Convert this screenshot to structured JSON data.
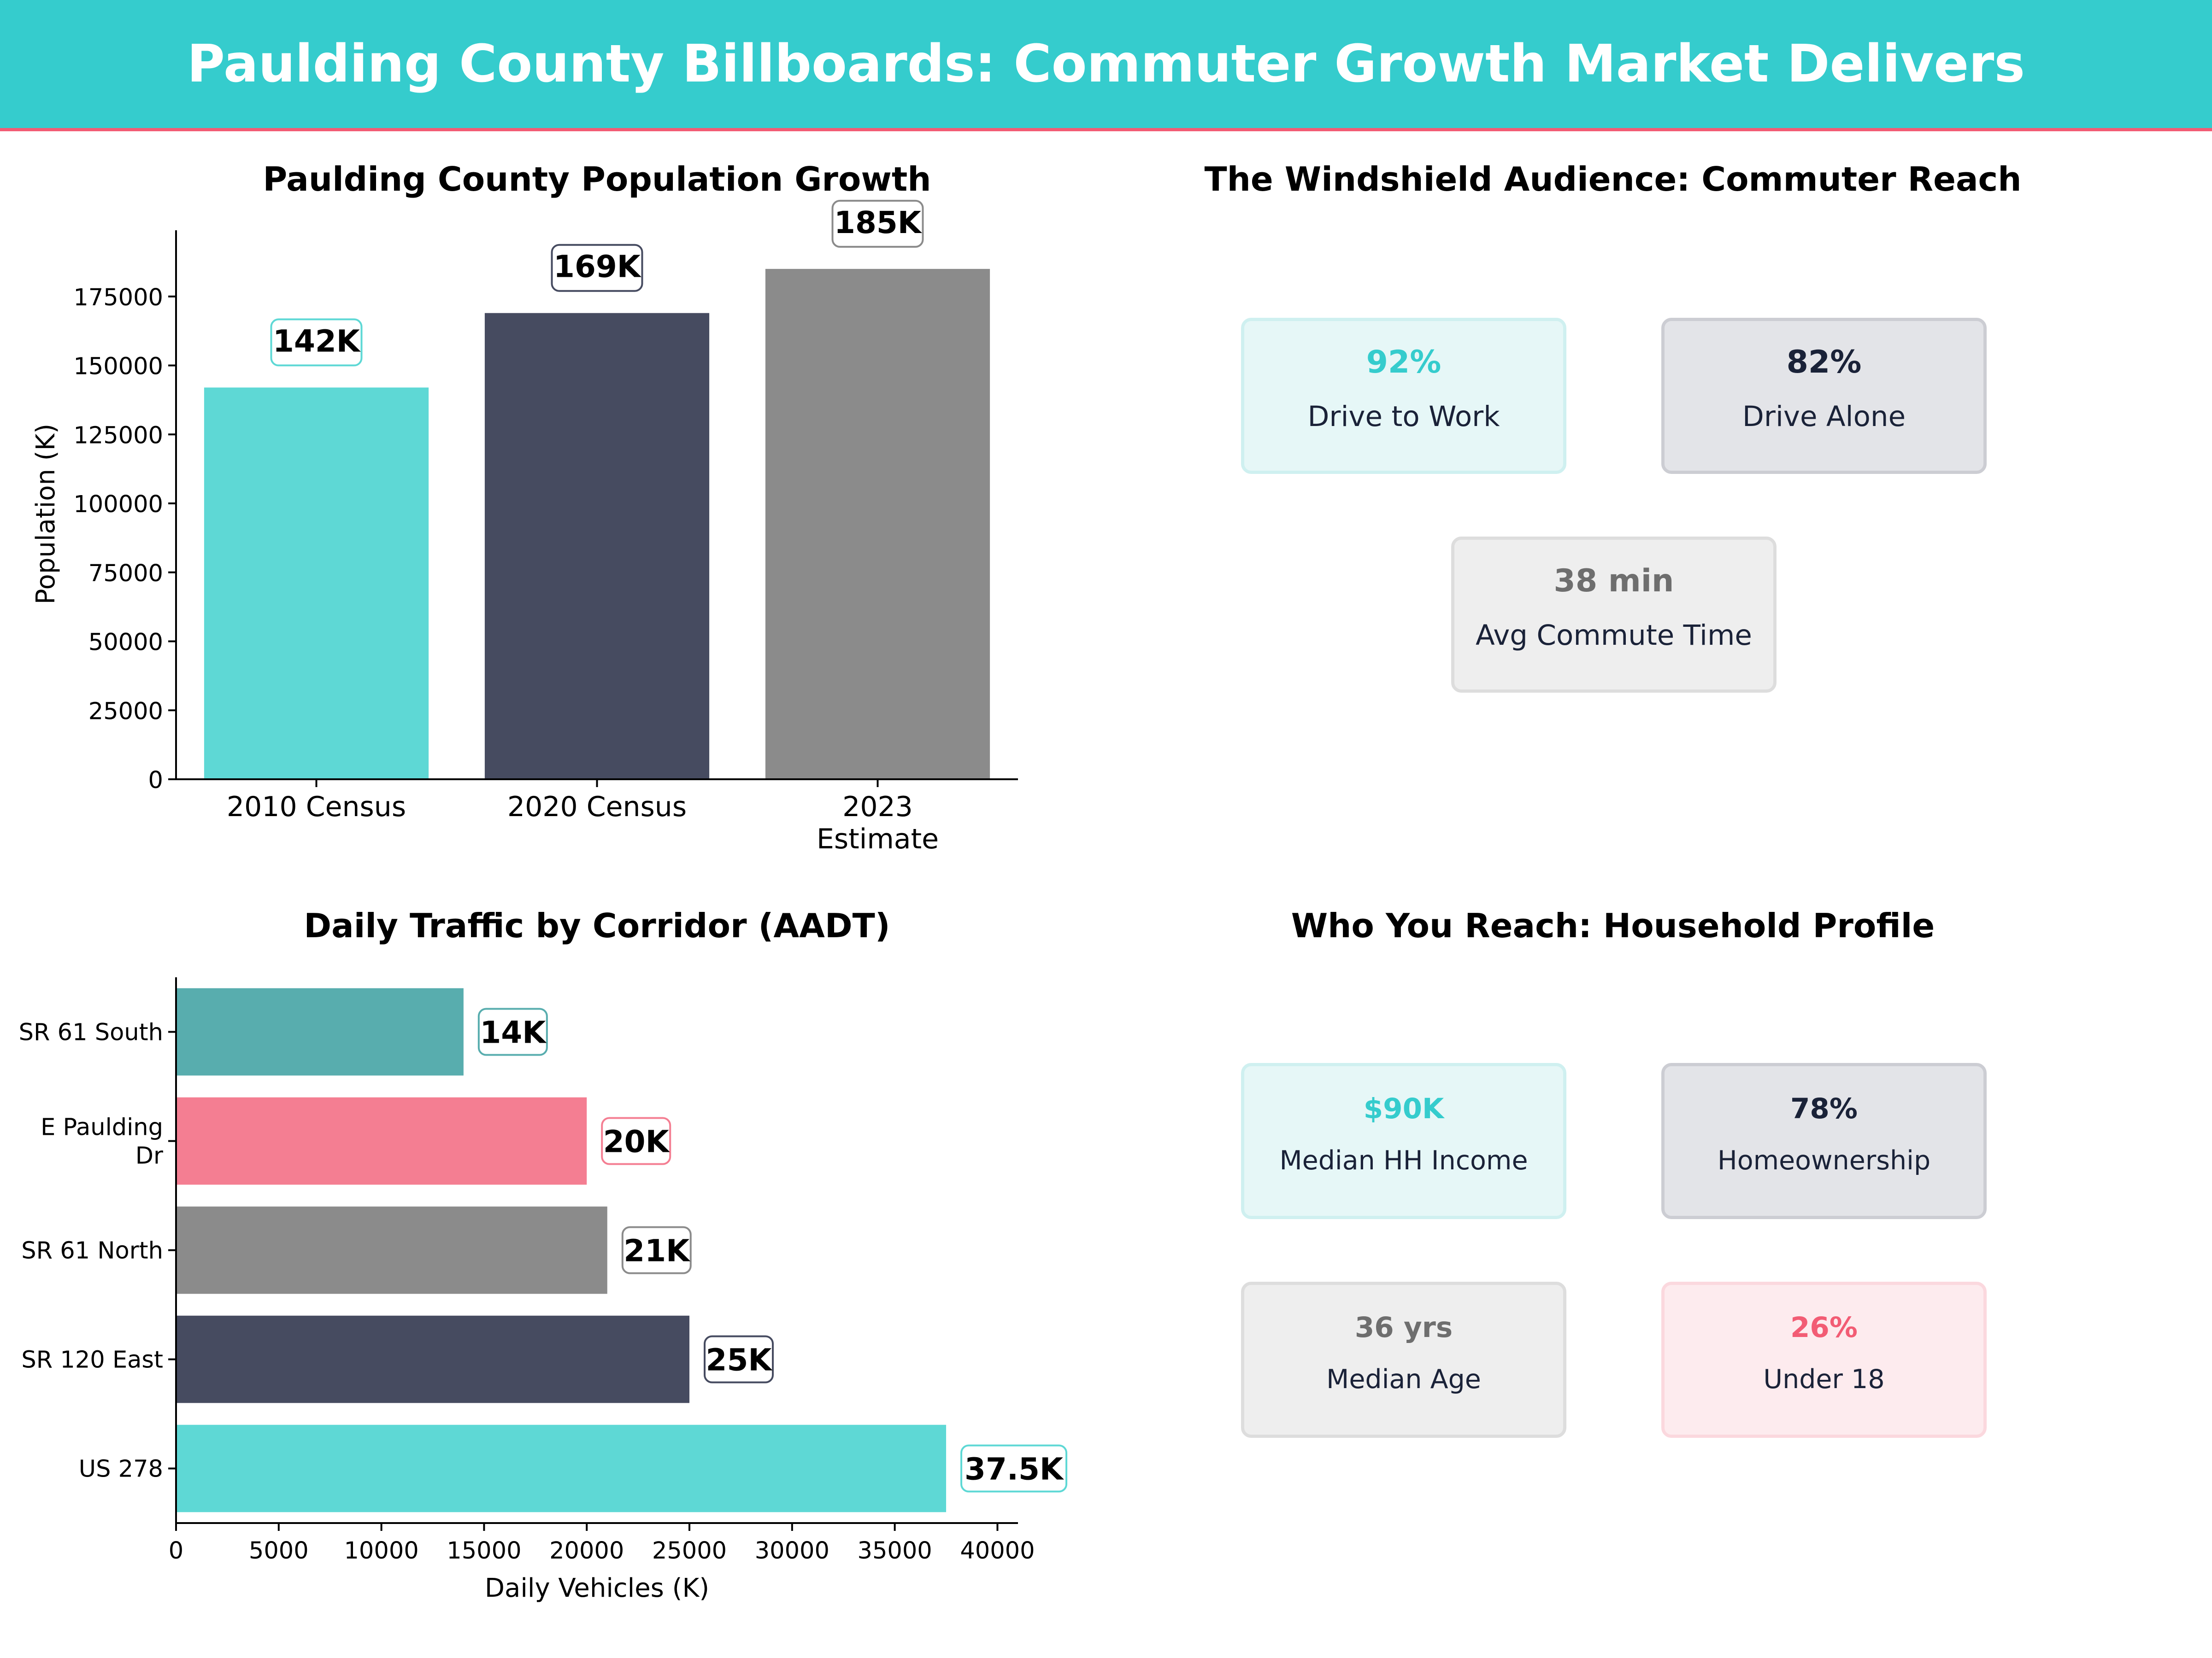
{
  "page": {
    "title": "Paulding County Billboards: Commuter Growth Market Delivers"
  },
  "colors": {
    "teal": "#5ED8D5",
    "navy": "#464B60",
    "gray": "#8B8B8B",
    "pink": "#F47E92",
    "dark_teal": "#58ADAE",
    "banner": "#35CCCD",
    "accent": "#F25C74"
  },
  "chart_data": [
    {
      "type": "bar",
      "title": "Paulding County Population Growth",
      "ylabel": "Population (K)",
      "ylim": [
        0,
        199000
      ],
      "yticks": [
        0,
        25000,
        50000,
        75000,
        100000,
        125000,
        150000,
        175000
      ],
      "ytick_labels": [
        "0",
        "25000",
        "50000",
        "75000",
        "100000",
        "125000",
        "150000",
        "175000"
      ],
      "categories": [
        "2010 Census",
        "2020 Census",
        "2023\nEstimate"
      ],
      "category_lines": [
        [
          "2010 Census"
        ],
        [
          "2020 Census"
        ],
        [
          "2023",
          "Estimate"
        ]
      ],
      "values": [
        142000,
        169000,
        185000
      ],
      "data_labels": [
        "142K",
        "169K",
        "185K"
      ],
      "bar_colors": [
        "#5ED8D5",
        "#464B60",
        "#8B8B8B"
      ],
      "grid": false
    },
    {
      "type": "bar",
      "orientation": "horizontal",
      "title": "Daily Traffic by Corridor (AADT)",
      "xlabel": "Daily Vehicles (K)",
      "xlim": [
        0,
        41000
      ],
      "xticks": [
        0,
        5000,
        10000,
        15000,
        20000,
        25000,
        30000,
        35000,
        40000
      ],
      "xtick_labels": [
        "0",
        "5000",
        "10000",
        "15000",
        "20000",
        "25000",
        "30000",
        "35000",
        "40000"
      ],
      "categories": [
        "SR 61 South",
        "E Paulding Dr",
        "SR 61 North",
        "SR 120 East",
        "US 278"
      ],
      "category_lines": [
        [
          "SR 61 South"
        ],
        [
          "E Paulding",
          "Dr"
        ],
        [
          "SR 61 North"
        ],
        [
          "SR 120 East"
        ],
        [
          "US 278"
        ]
      ],
      "values": [
        14000,
        20000,
        21000,
        25000,
        37500
      ],
      "data_labels": [
        "14K",
        "20K",
        "21K",
        "25K",
        "37.5K"
      ],
      "bar_colors": [
        "#58ADAE",
        "#F47E92",
        "#8B8B8B",
        "#464B60",
        "#5ED8D5"
      ],
      "grid": false
    }
  ],
  "commuter": {
    "title": "The Windshield Audience: Commuter Reach",
    "cards": [
      {
        "value": "92%",
        "label": "Drive to Work",
        "value_color": "#35CCCD",
        "bg": "#E6F7F7",
        "border": "#CFF0F0"
      },
      {
        "value": "82%",
        "label": "Drive Alone",
        "value_color": "#1a2238",
        "bg": "#E3E4E8",
        "border": "#CCCDD3"
      },
      {
        "value": "38 min",
        "label": "Avg Commute Time",
        "value_color": "#6e6e6e",
        "bg": "#EEEEEE",
        "border": "#DDDDDD"
      }
    ]
  },
  "household": {
    "title": "Who You Reach: Household Profile",
    "cards": [
      {
        "value": "$90K",
        "label": "Median HH Income",
        "value_color": "#35CCCD",
        "bg": "#E6F7F7",
        "border": "#CFF0F0"
      },
      {
        "value": "78%",
        "label": "Homeownership",
        "value_color": "#1a2238",
        "bg": "#E3E4E8",
        "border": "#CCCDD3"
      },
      {
        "value": "36 yrs",
        "label": "Median Age",
        "value_color": "#6e6e6e",
        "bg": "#EEEEEE",
        "border": "#DDDDDD"
      },
      {
        "value": "26%",
        "label": "Under 18",
        "value_color": "#F25C74",
        "bg": "#FDEBEE",
        "border": "#FBD8DE"
      }
    ]
  }
}
